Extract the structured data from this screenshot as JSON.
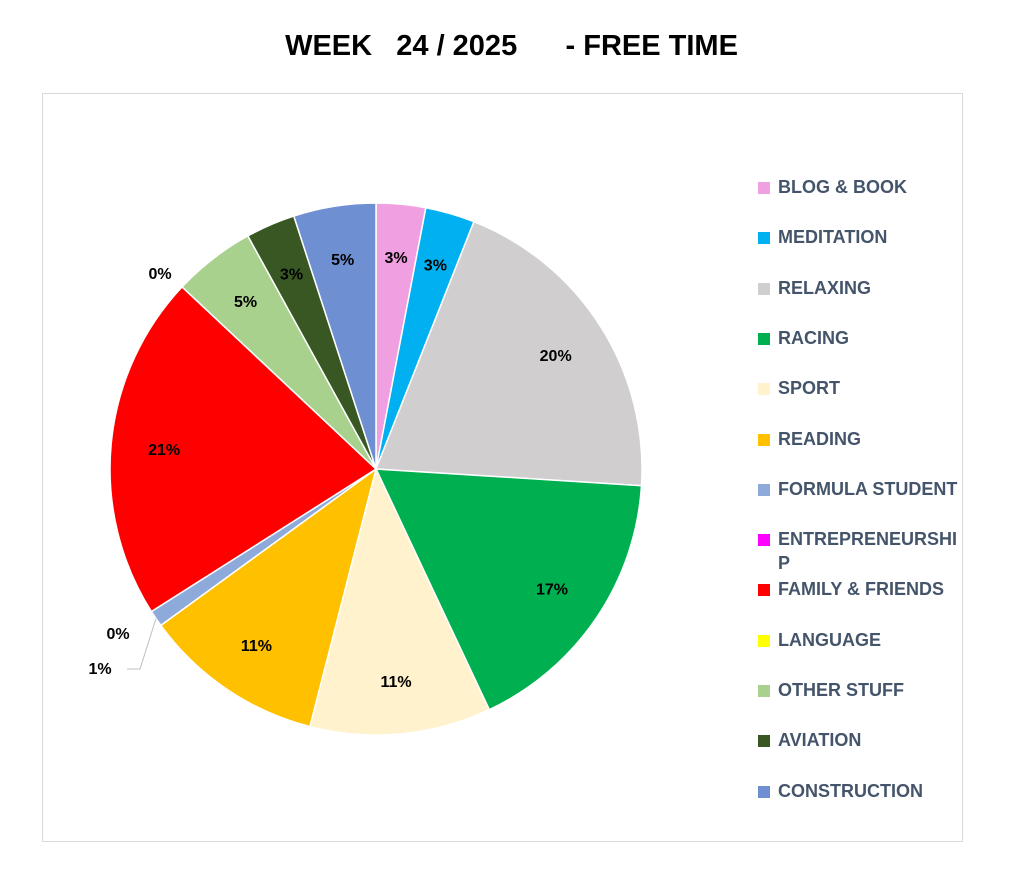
{
  "chart_data": {
    "type": "pie",
    "title": "WEEK   24 / 2025      - FREE TIME",
    "legend_position": "right",
    "categories": [
      "BLOG & BOOK",
      "MEDITATION",
      "RELAXING",
      "RACING",
      "SPORT",
      "READING",
      "FORMULA STUDENT",
      "ENTREPRENEURSHIP",
      "FAMILY & FRIENDS",
      "LANGUAGE",
      "OTHER STUFF",
      "AVIATION",
      "CONSTRUCTION"
    ],
    "values": [
      3,
      3,
      20,
      17,
      11,
      11,
      1,
      0,
      21,
      0,
      5,
      3,
      5
    ],
    "data_labels": [
      "3%",
      "3%",
      "20%",
      "17%",
      "11%",
      "11%",
      "1%",
      "0%",
      "21%",
      "0%",
      "5%",
      "3%",
      "5%"
    ],
    "colors": [
      "#f0a0e0",
      "#00b0f0",
      "#d0cece",
      "#00b050",
      "#fff2cc",
      "#ffc000",
      "#8eaadb",
      "#ff00ff",
      "#ff0000",
      "#ffff00",
      "#a9d18e",
      "#385723",
      "#6f8fd3"
    ]
  }
}
